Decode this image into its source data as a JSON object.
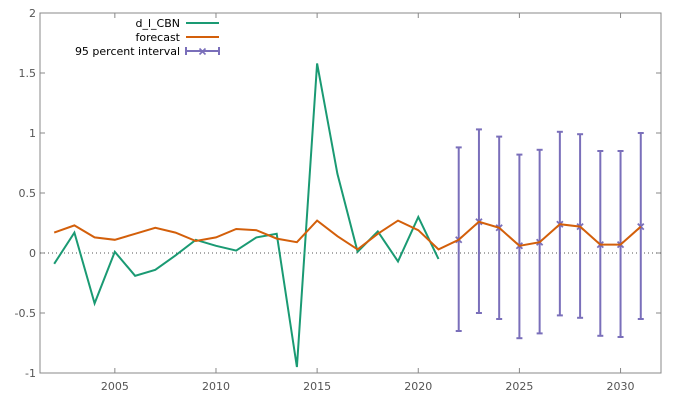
{
  "chart_data": {
    "type": "line",
    "xlim": [
      2001.3,
      2032.0
    ],
    "ylim": [
      -1,
      2
    ],
    "x_ticks": [
      2005,
      2010,
      2015,
      2020,
      2025,
      2030
    ],
    "y_ticks": [
      -1,
      -0.5,
      0,
      0.5,
      1,
      1.5,
      2
    ],
    "zero_line": true,
    "legend_position": "top-left",
    "series": [
      {
        "name": "d_l_CBN",
        "color": "#1a9a73",
        "x": [
          2002,
          2003,
          2004,
          2005,
          2006,
          2007,
          2008,
          2009,
          2010,
          2011,
          2012,
          2013,
          2014,
          2015,
          2016,
          2017,
          2018,
          2019,
          2020,
          2021
        ],
        "values": [
          -0.09,
          0.17,
          -0.42,
          0.01,
          -0.19,
          -0.14,
          -0.02,
          0.11,
          0.06,
          0.02,
          0.13,
          0.16,
          -0.95,
          1.58,
          0.66,
          0.01,
          0.18,
          -0.07,
          0.3,
          -0.05
        ]
      },
      {
        "name": "forecast",
        "color": "#d35f0a",
        "x": [
          2002,
          2003,
          2004,
          2005,
          2006,
          2007,
          2008,
          2009,
          2010,
          2011,
          2012,
          2013,
          2014,
          2015,
          2016,
          2017,
          2018,
          2019,
          2020,
          2021,
          2022,
          2023,
          2024,
          2025,
          2026,
          2027,
          2028,
          2029,
          2030,
          2031
        ],
        "values": [
          0.17,
          0.23,
          0.13,
          0.11,
          0.16,
          0.21,
          0.17,
          0.1,
          0.13,
          0.2,
          0.19,
          0.12,
          0.09,
          0.27,
          0.14,
          0.03,
          0.16,
          0.27,
          0.19,
          0.03,
          0.11,
          0.26,
          0.21,
          0.06,
          0.09,
          0.24,
          0.22,
          0.07,
          0.07,
          0.22
        ]
      },
      {
        "name": "95 percent interval",
        "color": "#7a6fba",
        "type": "errorbar",
        "x": [
          2022,
          2023,
          2024,
          2025,
          2026,
          2027,
          2028,
          2029,
          2030,
          2031
        ],
        "center": [
          0.11,
          0.26,
          0.21,
          0.06,
          0.09,
          0.24,
          0.22,
          0.07,
          0.07,
          0.22
        ],
        "upper": [
          0.88,
          1.03,
          0.97,
          0.82,
          0.86,
          1.01,
          0.99,
          0.85,
          0.85,
          1.0
        ],
        "lower": [
          -0.65,
          -0.5,
          -0.55,
          -0.71,
          -0.67,
          -0.52,
          -0.54,
          -0.69,
          -0.7,
          -0.55
        ]
      }
    ]
  }
}
